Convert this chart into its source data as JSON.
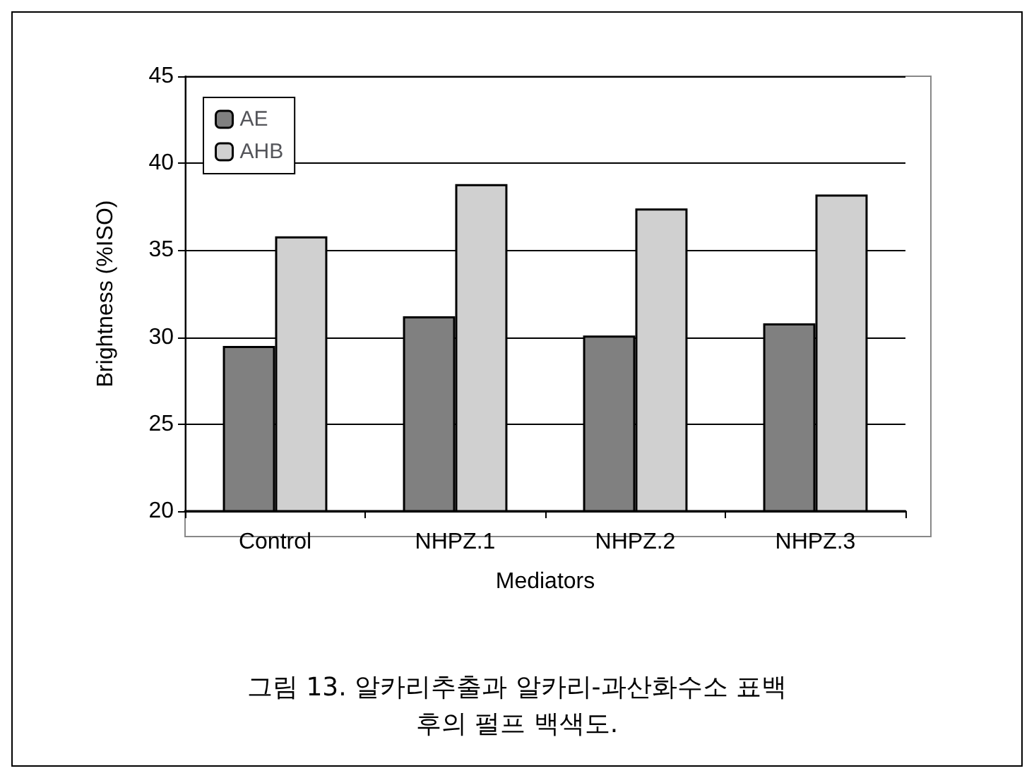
{
  "chart_data": {
    "type": "bar",
    "xlabel": "Mediators",
    "ylabel": "Brightness (%ISO)",
    "categories": [
      "Control",
      "NHPZ.1",
      "NHPZ.2",
      "NHPZ.3"
    ],
    "series": [
      {
        "name": "AE",
        "color": "#808080",
        "values": [
          29.5,
          31.2,
          30.1,
          30.8
        ]
      },
      {
        "name": "AHB",
        "color": "#d0d0d0",
        "values": [
          35.8,
          38.8,
          37.4,
          38.2
        ]
      }
    ],
    "ylim": [
      20,
      45
    ],
    "yticks": [
      20,
      25,
      30,
      35,
      40,
      45
    ],
    "grid": "y",
    "legend": "top left",
    "annotations": [
      "그림 13. 알카리추출과 알카리-과산화수소 표백\n후의 펄프 백색도."
    ]
  }
}
